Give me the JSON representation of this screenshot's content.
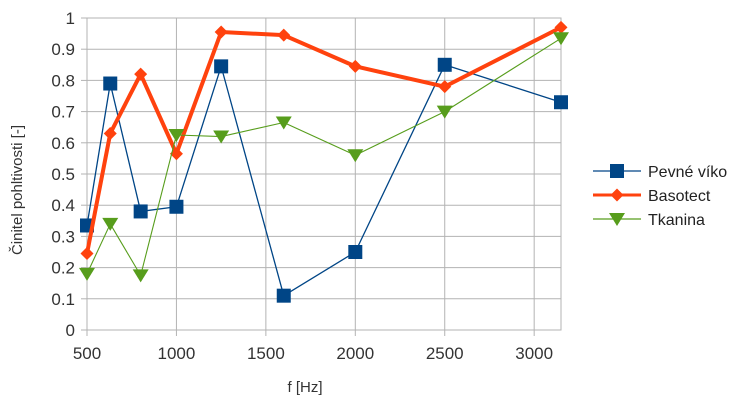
{
  "chart_data": {
    "type": "line",
    "title": "",
    "xlabel": "f  [Hz]",
    "ylabel": "Činitel pohltivosti [-]",
    "xlim": [
      500,
      3150
    ],
    "ylim": [
      0,
      1
    ],
    "grid": true,
    "legend_position": "right",
    "x_ticks": [
      500,
      1000,
      1500,
      2000,
      2500,
      3000
    ],
    "y_ticks": [
      0,
      0.1,
      0.2,
      0.3,
      0.4,
      0.5,
      0.6,
      0.7,
      0.8,
      0.9,
      1
    ],
    "y_tick_labels": [
      "0",
      "0.1",
      "0.2",
      "0.3",
      "0.4",
      "0.5",
      "0.6",
      "0.7",
      "0.8",
      "0.9",
      "1"
    ],
    "x": [
      500,
      630,
      800,
      1000,
      1250,
      1600,
      2000,
      2500,
      3150
    ],
    "series": [
      {
        "name": "Pevné víko",
        "color": "#004586",
        "marker": "square",
        "values": [
          0.335,
          0.79,
          0.38,
          0.395,
          0.845,
          0.11,
          0.25,
          0.85,
          0.73
        ]
      },
      {
        "name": "Basotect",
        "color": "#ff420e",
        "marker": "diamond",
        "values": [
          0.245,
          0.63,
          0.82,
          0.565,
          0.955,
          0.945,
          0.845,
          0.78,
          0.97
        ]
      },
      {
        "name": "Tkanina",
        "color": "#579d1c",
        "marker": "triangle-down",
        "values": [
          0.18,
          0.34,
          0.175,
          0.625,
          0.62,
          0.665,
          0.56,
          0.7,
          0.935
        ]
      }
    ]
  }
}
